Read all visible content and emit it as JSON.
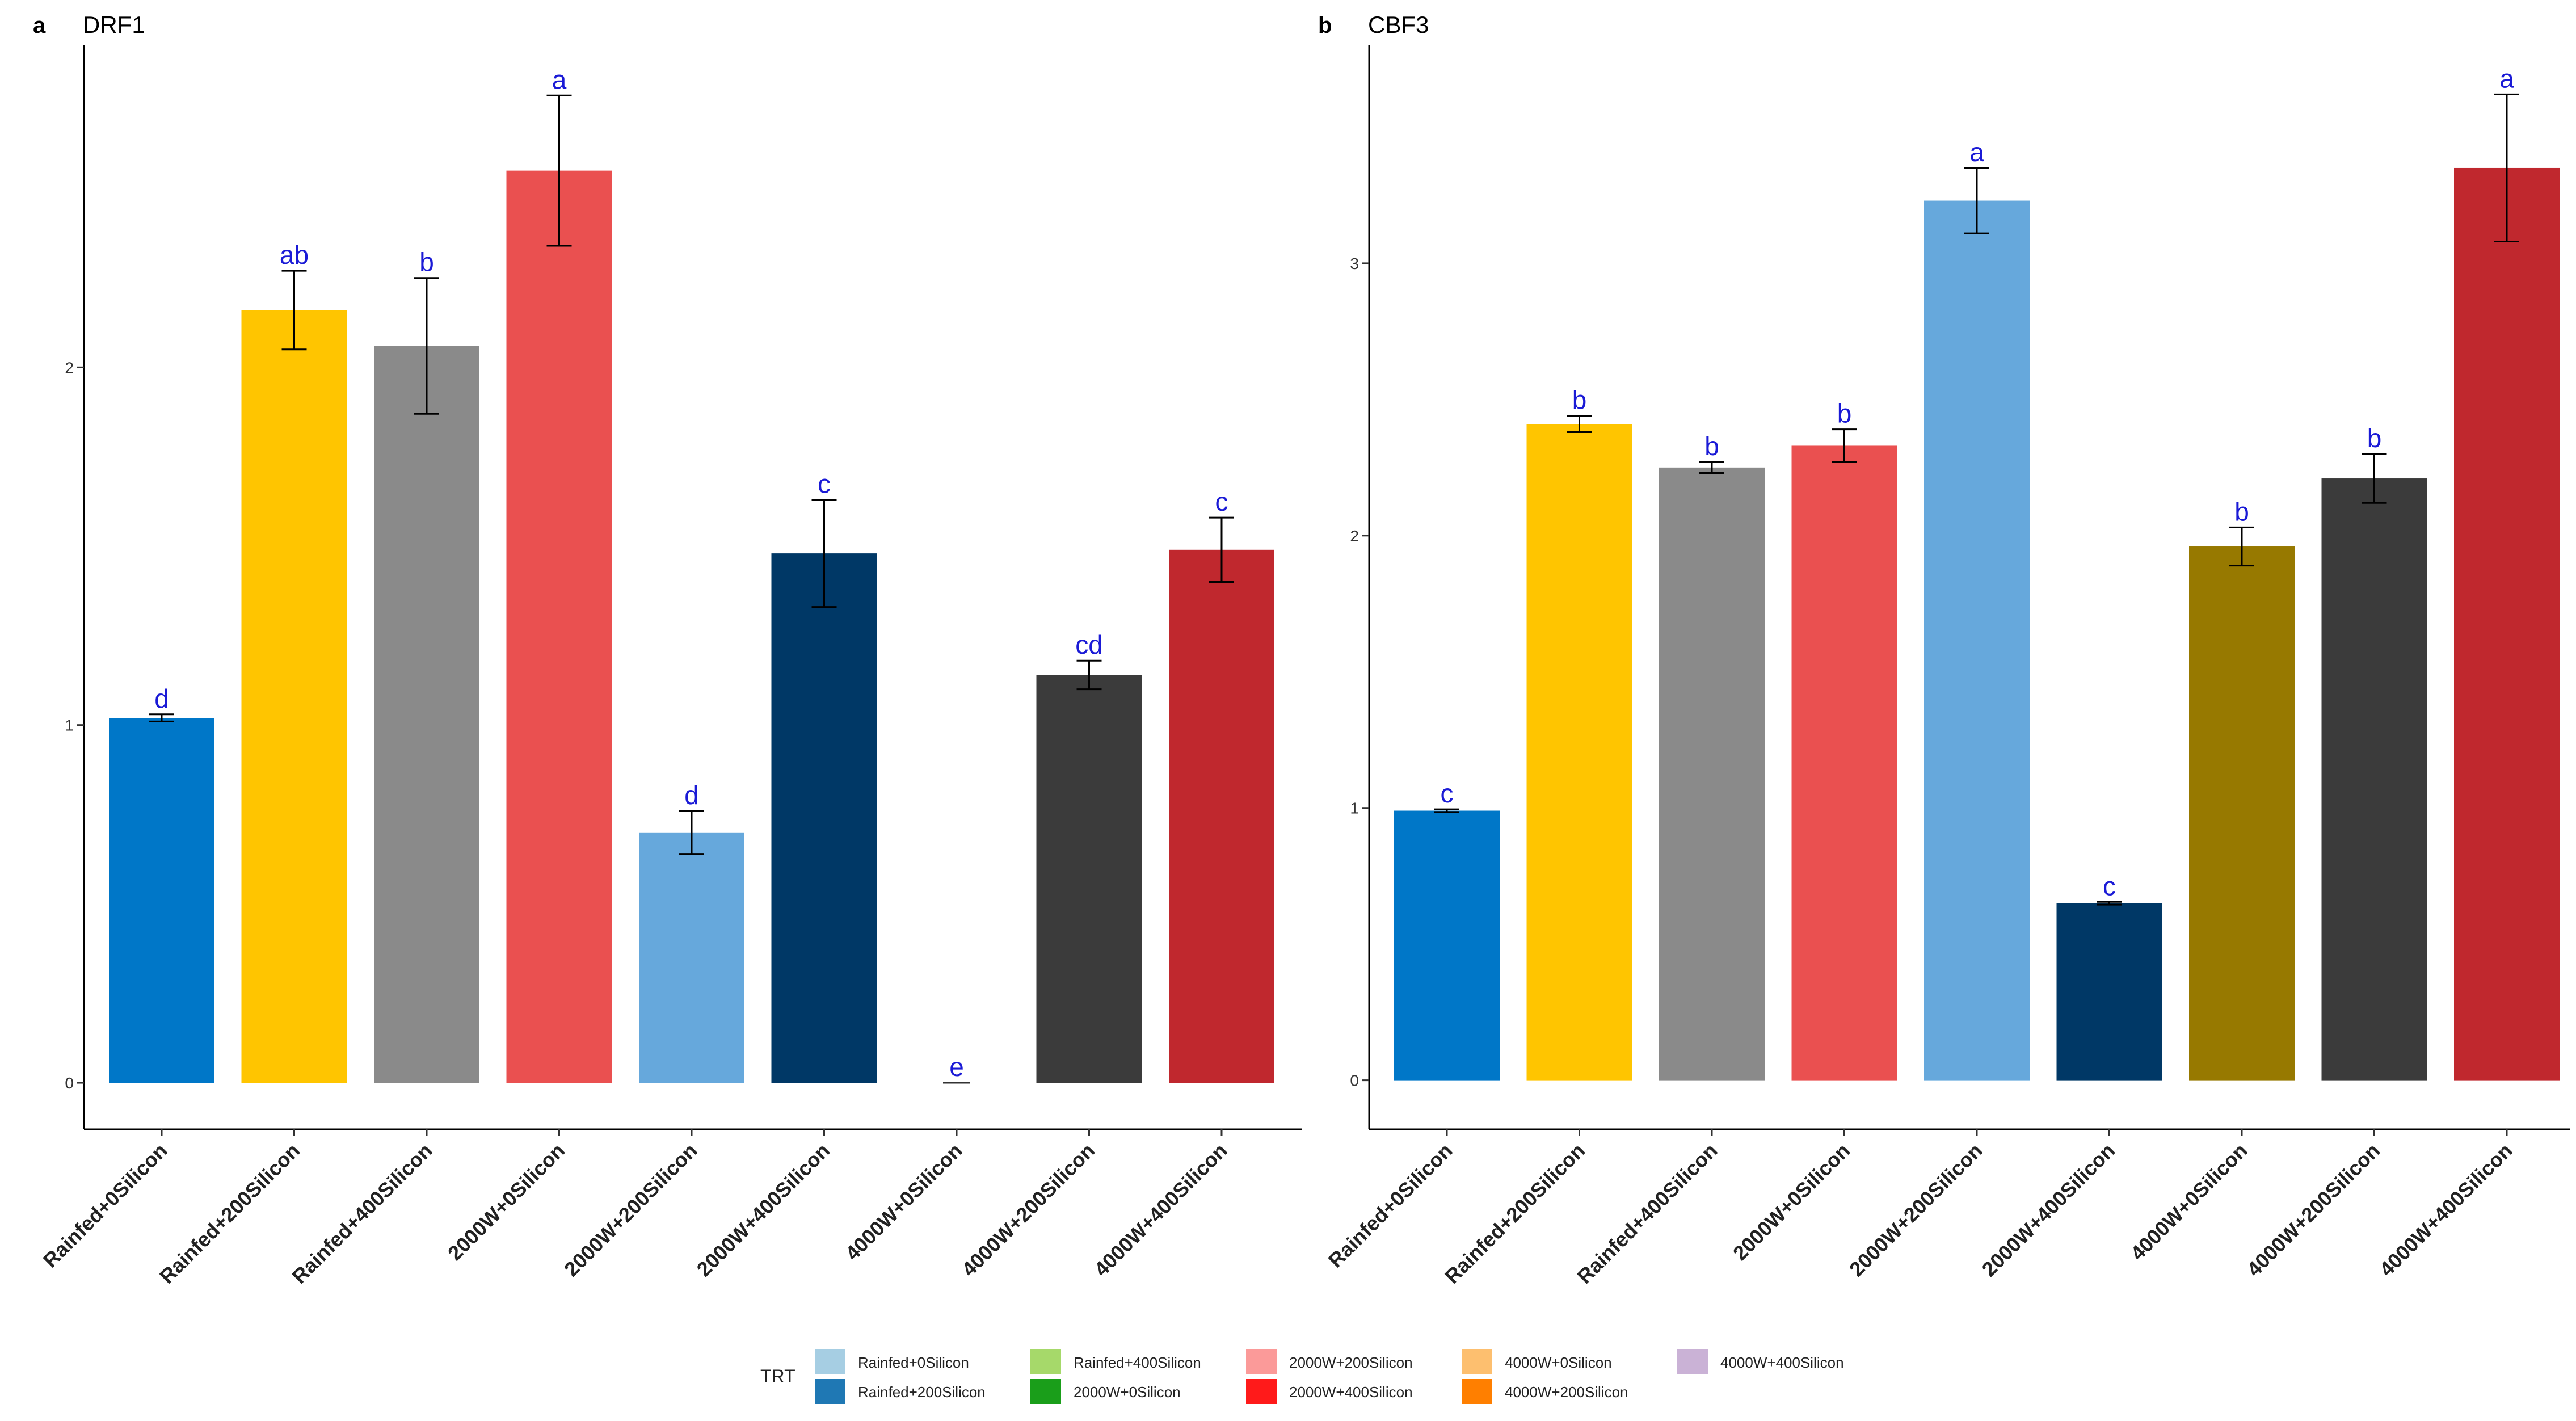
{
  "chart_data": [
    {
      "panel_label": "a",
      "type": "bar",
      "title": "DRF1",
      "categories": [
        "Rainfed+0Silicon",
        "Rainfed+200Silicon",
        "Rainfed+400Silicon",
        "2000W+0Silicon",
        "2000W+200Silicon",
        "2000W+400Silicon",
        "4000W+0Silicon",
        "4000W+200Silicon",
        "4000W+400Silicon"
      ],
      "values": [
        1.02,
        2.16,
        2.06,
        2.55,
        0.7,
        1.48,
        0.0,
        1.14,
        1.49
      ],
      "errors": [
        0.01,
        0.11,
        0.19,
        0.21,
        0.06,
        0.15,
        0.0,
        0.04,
        0.09
      ],
      "letters": [
        "d",
        "ab",
        "b",
        "a",
        "d",
        "c",
        "e",
        "cd",
        "c"
      ],
      "colors": [
        "#0077c8",
        "#ffc500",
        "#8a8a8a",
        "#ea5050",
        "#66a8dc",
        "#003866",
        "#cccccc",
        "#3b3b3b",
        "#c0282e"
      ],
      "ylim": [
        -0.13,
        2.9
      ],
      "yticks": [
        0,
        1,
        2
      ],
      "xlabel": "",
      "ylabel": "",
      "grid": false
    },
    {
      "panel_label": "b",
      "type": "bar",
      "title": "CBF3",
      "categories": [
        "Rainfed+0Silicon",
        "Rainfed+200Silicon",
        "Rainfed+400Silicon",
        "2000W+0Silicon",
        "2000W+200Silicon",
        "2000W+400Silicon",
        "4000W+0Silicon",
        "4000W+200Silicon",
        "4000W+400Silicon"
      ],
      "values": [
        0.99,
        2.41,
        2.25,
        2.33,
        3.23,
        0.65,
        1.96,
        2.21,
        3.35
      ],
      "errors": [
        0.005,
        0.03,
        0.02,
        0.06,
        0.12,
        0.005,
        0.07,
        0.09,
        0.27
      ],
      "letters": [
        "c",
        "b",
        "b",
        "b",
        "a",
        "c",
        "b",
        "b",
        "a"
      ],
      "colors": [
        "#0077c8",
        "#ffc500",
        "#8a8a8a",
        "#ea5050",
        "#66a8dc",
        "#003866",
        "#977900",
        "#3b3b3b",
        "#c0282e"
      ],
      "ylim": [
        -0.18,
        3.8
      ],
      "yticks": [
        0,
        1,
        2,
        3
      ],
      "xlabel": "",
      "ylabel": "",
      "grid": false
    }
  ],
  "legend": {
    "title": "TRT",
    "position": "bottom",
    "entries": [
      {
        "label": "Rainfed+0Silicon",
        "color": "#a6cee3"
      },
      {
        "label": "Rainfed+200Silicon",
        "color": "#1f78b4"
      },
      {
        "label": "Rainfed+400Silicon",
        "color": "#a6d96a"
      },
      {
        "label": "2000W+0Silicon",
        "color": "#1a9e1a"
      },
      {
        "label": "2000W+200Silicon",
        "color": "#fb9a99"
      },
      {
        "label": "2000W+400Silicon",
        "color": "#ff1a1a"
      },
      {
        "label": "4000W+0Silicon",
        "color": "#fdbf6f"
      },
      {
        "label": "4000W+200Silicon",
        "color": "#ff7f00"
      },
      {
        "label": "4000W+400Silicon",
        "color": "#cab2d6"
      }
    ]
  }
}
